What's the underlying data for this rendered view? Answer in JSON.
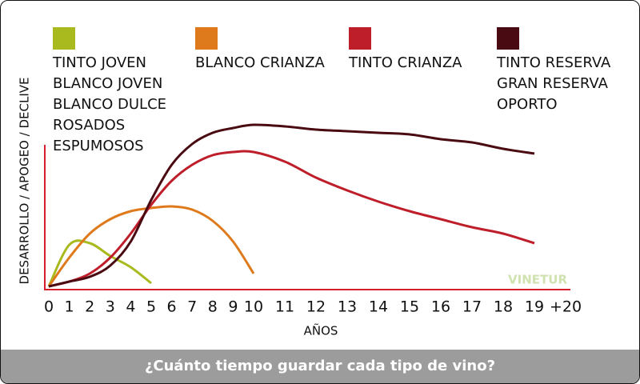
{
  "chart_data": {
    "type": "line",
    "title": "¿Cuánto tiempo guardar cada tipo de vino?",
    "y_label": "DESARROLLO / APOGEO / DECLIVE",
    "x_label": "AÑOS",
    "watermark": "VINETUR",
    "categories": [
      "0",
      "1",
      "2",
      "3",
      "4",
      "5",
      "6",
      "7",
      "8",
      "9",
      "10",
      "11",
      "12",
      "13",
      "14",
      "15",
      "16",
      "17",
      "18",
      "19",
      "+20"
    ],
    "ylim": [
      0,
      110
    ],
    "series": [
      {
        "names": [
          "TINTO JOVEN",
          "BLANCO JOVEN",
          "BLANCO DULCE",
          "ROSADOS",
          "ESPUMOSOS"
        ],
        "color": "#a9ba1e",
        "values": [
          0,
          26,
          27,
          19,
          12,
          2,
          null,
          null,
          null,
          null,
          null,
          null,
          null,
          null,
          null,
          null,
          null,
          null,
          null,
          null,
          null
        ]
      },
      {
        "names": [
          "BLANCO CRIANZA"
        ],
        "color": "#df7a1c",
        "values": [
          0,
          18,
          33,
          42,
          47,
          49,
          50,
          48,
          41,
          28,
          8,
          null,
          null,
          null,
          null,
          null,
          null,
          null,
          null,
          null,
          null
        ]
      },
      {
        "names": [
          "TINTO CRIANZA"
        ],
        "color": "#be1e2a",
        "values": [
          0,
          3,
          8,
          18,
          33,
          51,
          66,
          76,
          82,
          84,
          84,
          78,
          68,
          60,
          53,
          47,
          42,
          37,
          33,
          27,
          null
        ]
      },
      {
        "names": [
          "TINTO RESERVA",
          "GRAN RESERVA",
          "OPORTO"
        ],
        "color": "#4a0a12",
        "values": [
          0,
          3,
          6,
          13,
          28,
          54,
          76,
          89,
          96,
          99,
          101,
          100,
          98,
          97,
          96,
          95,
          92,
          90,
          86,
          83,
          null
        ]
      }
    ]
  }
}
